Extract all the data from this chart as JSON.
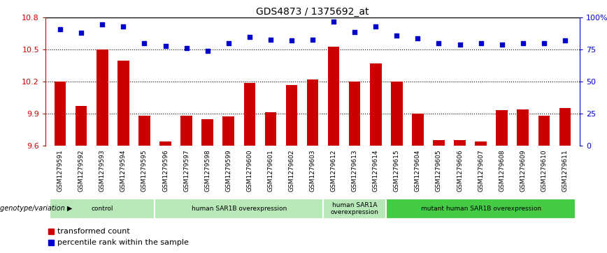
{
  "title": "GDS4873 / 1375692_at",
  "samples": [
    "GSM1279591",
    "GSM1279592",
    "GSM1279593",
    "GSM1279594",
    "GSM1279595",
    "GSM1279596",
    "GSM1279597",
    "GSM1279598",
    "GSM1279599",
    "GSM1279600",
    "GSM1279601",
    "GSM1279602",
    "GSM1279603",
    "GSM1279612",
    "GSM1279613",
    "GSM1279614",
    "GSM1279615",
    "GSM1279604",
    "GSM1279605",
    "GSM1279606",
    "GSM1279607",
    "GSM1279608",
    "GSM1279609",
    "GSM1279610",
    "GSM1279611"
  ],
  "bar_values": [
    10.2,
    9.97,
    10.5,
    10.4,
    9.88,
    9.64,
    9.88,
    9.85,
    9.87,
    10.19,
    9.91,
    10.17,
    10.22,
    10.53,
    10.2,
    10.37,
    10.2,
    9.9,
    9.65,
    9.65,
    9.64,
    9.93,
    9.94,
    9.88,
    9.95
  ],
  "percentile_values": [
    91,
    88,
    95,
    93,
    80,
    78,
    76,
    74,
    80,
    85,
    83,
    82,
    83,
    97,
    89,
    93,
    86,
    84,
    80,
    79,
    80,
    79,
    80,
    80,
    82
  ],
  "ylim_left": [
    9.6,
    10.8
  ],
  "ylim_right": [
    0,
    100
  ],
  "yticks_left": [
    9.6,
    9.9,
    10.2,
    10.5,
    10.8
  ],
  "yticks_right": [
    0,
    25,
    50,
    75,
    100
  ],
  "ytick_labels_left": [
    "9.6",
    "9.9",
    "10.2",
    "10.5",
    "10.8"
  ],
  "ytick_labels_right": [
    "0",
    "25",
    "50",
    "75",
    "100%"
  ],
  "bar_color": "#CC0000",
  "dot_color": "#0000CC",
  "groups": [
    {
      "label": "control",
      "start": 0,
      "end": 4,
      "color": "#b8e8b8"
    },
    {
      "label": "human SAR1B overexpression",
      "start": 5,
      "end": 12,
      "color": "#b8e8b8"
    },
    {
      "label": "human SAR1A\noverexpression",
      "start": 13,
      "end": 15,
      "color": "#b8e8b8"
    },
    {
      "label": "mutant human SAR1B overexpression",
      "start": 16,
      "end": 24,
      "color": "#44cc44"
    }
  ],
  "legend_items": [
    {
      "label": "transformed count",
      "color": "#CC0000"
    },
    {
      "label": "percentile rank within the sample",
      "color": "#0000CC"
    }
  ],
  "ticklabel_color_left": "#CC0000",
  "ticklabel_color_right": "#0000CC",
  "xtick_bg_color": "#c8c8c8",
  "genotype_label": "genotype/variation"
}
